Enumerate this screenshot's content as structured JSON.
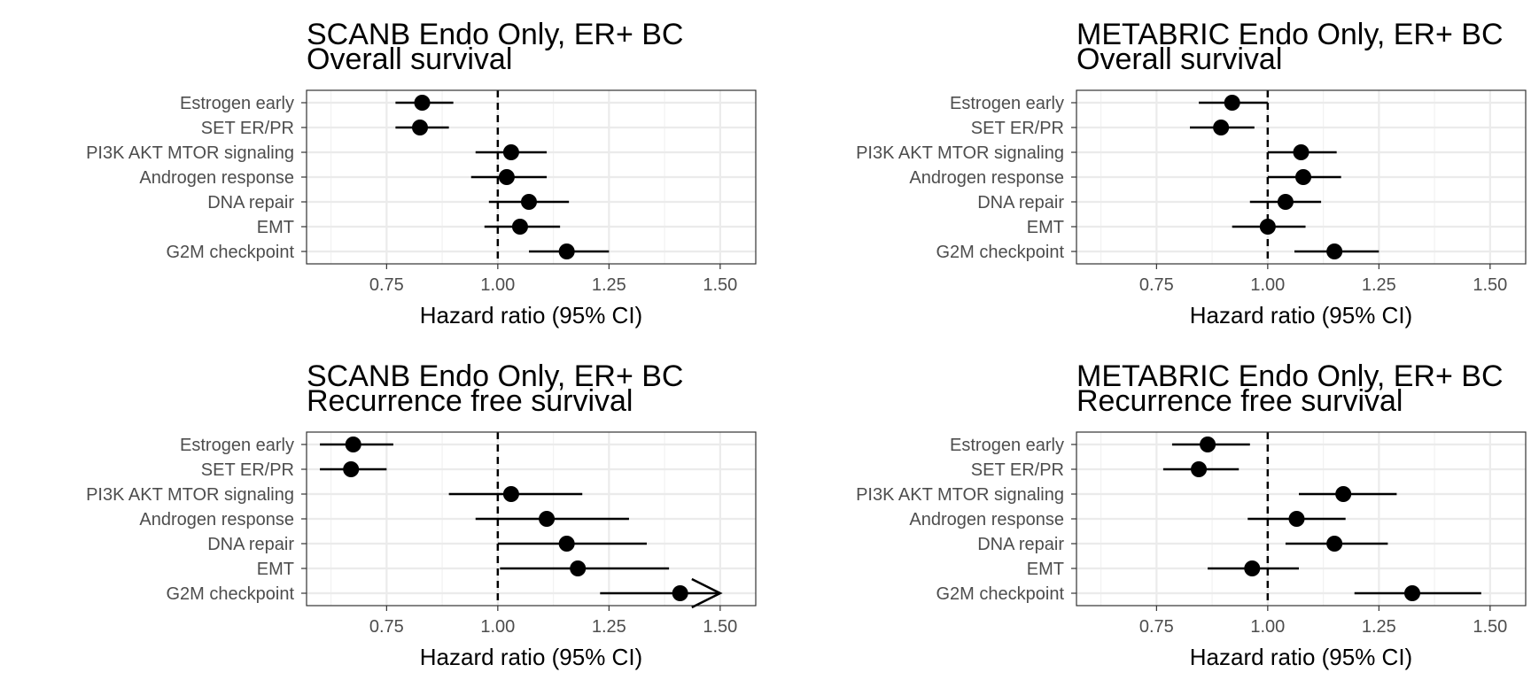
{
  "chart_data": [
    {
      "type": "forest",
      "title": "SCANB Endo Only, ER+ BC",
      "subtitle": "Overall survival",
      "xlabel": "Hazard ratio (95% CI)",
      "xlim": [
        0.57,
        1.58
      ],
      "xticks": [
        "0.75",
        "1.00",
        "1.25",
        "1.50"
      ],
      "reference_line": 1.0,
      "grid": true,
      "rows": [
        {
          "label": "Estrogen early",
          "hr": 0.83,
          "lo": 0.77,
          "hi": 0.9
        },
        {
          "label": "SET ER/PR",
          "hr": 0.825,
          "lo": 0.77,
          "hi": 0.89
        },
        {
          "label": "PI3K AKT MTOR signaling",
          "hr": 1.03,
          "lo": 0.95,
          "hi": 1.11
        },
        {
          "label": "Androgen response",
          "hr": 1.02,
          "lo": 0.94,
          "hi": 1.11
        },
        {
          "label": "DNA repair",
          "hr": 1.07,
          "lo": 0.98,
          "hi": 1.16
        },
        {
          "label": "EMT",
          "hr": 1.05,
          "lo": 0.97,
          "hi": 1.14
        },
        {
          "label": "G2M checkpoint",
          "hr": 1.155,
          "lo": 1.07,
          "hi": 1.25
        }
      ]
    },
    {
      "type": "forest",
      "title": "METABRIC Endo Only, ER+ BC",
      "subtitle": "Overall survival",
      "xlabel": "Hazard ratio (95% CI)",
      "xlim": [
        0.57,
        1.58
      ],
      "xticks": [
        "0.75",
        "1.00",
        "1.25",
        "1.50"
      ],
      "reference_line": 1.0,
      "grid": true,
      "rows": [
        {
          "label": "Estrogen early",
          "hr": 0.92,
          "lo": 0.845,
          "hi": 1.0
        },
        {
          "label": "SET ER/PR",
          "hr": 0.895,
          "lo": 0.825,
          "hi": 0.97
        },
        {
          "label": "PI3K AKT MTOR signaling",
          "hr": 1.075,
          "lo": 1.0,
          "hi": 1.155
        },
        {
          "label": "Androgen response",
          "hr": 1.08,
          "lo": 1.0,
          "hi": 1.165
        },
        {
          "label": "DNA repair",
          "hr": 1.04,
          "lo": 0.96,
          "hi": 1.12
        },
        {
          "label": "EMT",
          "hr": 1.0,
          "lo": 0.92,
          "hi": 1.085
        },
        {
          "label": "G2M checkpoint",
          "hr": 1.15,
          "lo": 1.06,
          "hi": 1.25
        }
      ]
    },
    {
      "type": "forest",
      "title": "SCANB Endo Only, ER+ BC",
      "subtitle": "Recurrence free survival",
      "xlabel": "Hazard ratio (95% CI)",
      "xlim": [
        0.57,
        1.58
      ],
      "xticks": [
        "0.75",
        "1.00",
        "1.25",
        "1.50"
      ],
      "reference_line": 1.0,
      "grid": true,
      "rows": [
        {
          "label": "Estrogen early",
          "hr": 0.675,
          "lo": 0.6,
          "hi": 0.765
        },
        {
          "label": "SET ER/PR",
          "hr": 0.67,
          "lo": 0.6,
          "hi": 0.75
        },
        {
          "label": "PI3K AKT MTOR signaling",
          "hr": 1.03,
          "lo": 0.89,
          "hi": 1.19
        },
        {
          "label": "Androgen response",
          "hr": 1.11,
          "lo": 0.95,
          "hi": 1.295
        },
        {
          "label": "DNA repair",
          "hr": 1.155,
          "lo": 1.0,
          "hi": 1.335
        },
        {
          "label": "EMT",
          "hr": 1.18,
          "lo": 1.005,
          "hi": 1.385
        },
        {
          "label": "G2M checkpoint",
          "hr": 1.41,
          "lo": 1.23,
          "hi": 1.5,
          "truncated": true
        }
      ]
    },
    {
      "type": "forest",
      "title": "METABRIC Endo Only, ER+ BC",
      "subtitle": "Recurrence free survival",
      "xlabel": "Hazard ratio (95% CI)",
      "xlim": [
        0.57,
        1.58
      ],
      "xticks": [
        "0.75",
        "1.00",
        "1.25",
        "1.50"
      ],
      "reference_line": 1.0,
      "grid": true,
      "rows": [
        {
          "label": "Estrogen early",
          "hr": 0.865,
          "lo": 0.785,
          "hi": 0.96
        },
        {
          "label": "SET ER/PR",
          "hr": 0.845,
          "lo": 0.765,
          "hi": 0.935
        },
        {
          "label": "PI3K AKT MTOR signaling",
          "hr": 1.17,
          "lo": 1.07,
          "hi": 1.29
        },
        {
          "label": "Androgen response",
          "hr": 1.065,
          "lo": 0.955,
          "hi": 1.175
        },
        {
          "label": "DNA repair",
          "hr": 1.15,
          "lo": 1.04,
          "hi": 1.27
        },
        {
          "label": "EMT",
          "hr": 0.965,
          "lo": 0.865,
          "hi": 1.07
        },
        {
          "label": "G2M checkpoint",
          "hr": 1.325,
          "lo": 1.195,
          "hi": 1.48
        }
      ]
    }
  ]
}
